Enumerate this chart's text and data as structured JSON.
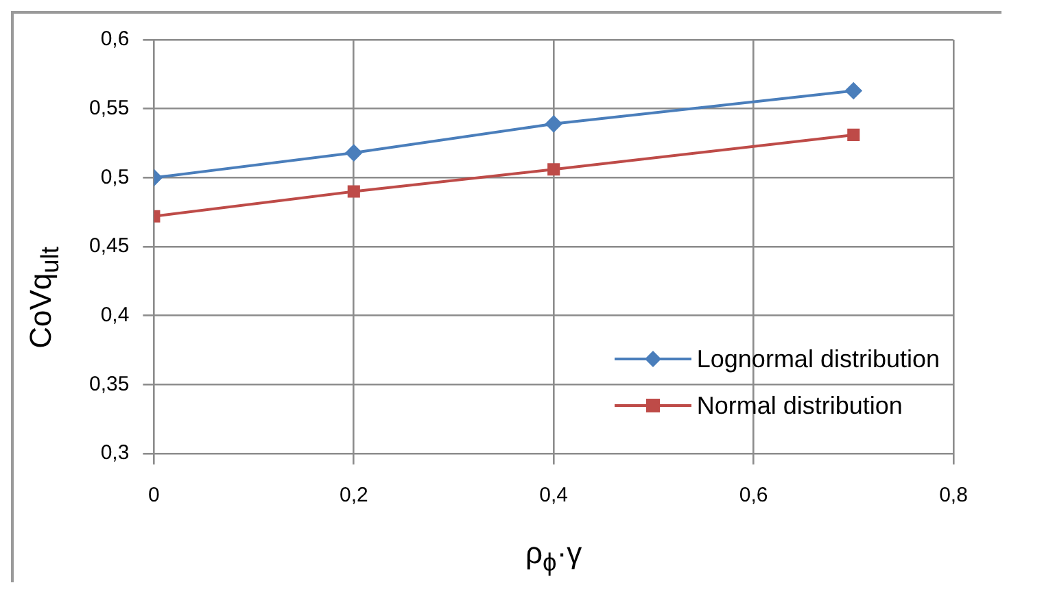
{
  "chart_data": {
    "type": "line",
    "xlabel": "ρ$_{ϕ}$·γ",
    "ylabel": "CoVq$_{ult}$",
    "x": [
      0,
      0.2,
      0.4,
      0.7
    ],
    "series": [
      {
        "name": "Lognormal distribution",
        "color": "#4a7ebb",
        "values": [
          0.5,
          0.518,
          0.539,
          0.563
        ],
        "marker": "diamond"
      },
      {
        "name": "Normal distribution",
        "color": "#be4b48",
        "values": [
          0.472,
          0.49,
          0.506,
          0.531
        ],
        "marker": "square"
      }
    ],
    "xlim": [
      0,
      0.8
    ],
    "xticks": [
      {
        "value": 0,
        "label": "0"
      },
      {
        "value": 0.2,
        "label": "0,2"
      },
      {
        "value": 0.4,
        "label": "0,4"
      },
      {
        "value": 0.6,
        "label": "0,6"
      },
      {
        "value": 0.8,
        "label": "0,8"
      }
    ],
    "ylim": [
      0.3,
      0.6
    ],
    "yticks": [
      {
        "value": 0.3,
        "label": "0,3"
      },
      {
        "value": 0.35,
        "label": "0,35"
      },
      {
        "value": 0.4,
        "label": "0,4"
      },
      {
        "value": 0.45,
        "label": "0,45"
      },
      {
        "value": 0.5,
        "label": "0,5"
      },
      {
        "value": 0.55,
        "label": "0,55"
      },
      {
        "value": 0.6,
        "label": "0,6"
      }
    ],
    "grid": true,
    "legend": "bottom right",
    "line_style": "solid"
  }
}
